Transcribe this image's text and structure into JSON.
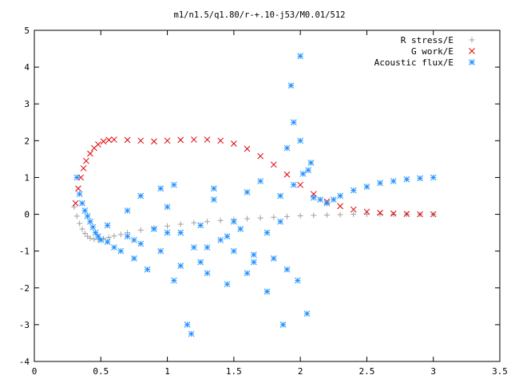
{
  "chart_data": {
    "type": "scatter",
    "title": "m1/n1.5/q1.80/r-+.10-j53/M0.01/512",
    "xlabel": "",
    "ylabel": "",
    "xlim": [
      0,
      3.5
    ],
    "ylim": [
      -4,
      5
    ],
    "x_ticks": [
      "0",
      "0.5",
      "1",
      "1.5",
      "2",
      "2.5",
      "3",
      "3.5"
    ],
    "y_ticks": [
      "-4",
      "-3",
      "-2",
      "-1",
      "0",
      "1",
      "2",
      "3",
      "4",
      "5"
    ],
    "x_tick_values": [
      0,
      0.5,
      1,
      1.5,
      2,
      2.5,
      3,
      3.5
    ],
    "y_tick_values": [
      -4,
      -3,
      -2,
      -1,
      0,
      1,
      2,
      3,
      4,
      5
    ],
    "grid": false,
    "legend_position": "top-right",
    "series": [
      {
        "name": "R stress/E",
        "marker": "plus",
        "color": "#a0a0a0",
        "x": [
          0.3,
          0.32,
          0.34,
          0.36,
          0.38,
          0.4,
          0.42,
          0.45,
          0.48,
          0.52,
          0.56,
          0.6,
          0.65,
          0.7,
          0.8,
          0.9,
          1.0,
          1.1,
          1.2,
          1.3,
          1.4,
          1.5,
          1.6,
          1.7,
          1.8,
          1.9,
          2.0,
          2.1,
          2.2,
          2.3,
          2.4,
          2.5,
          2.6,
          2.7,
          2.8,
          2.9,
          3.0
        ],
        "y": [
          0.2,
          -0.05,
          -0.25,
          -0.4,
          -0.52,
          -0.6,
          -0.65,
          -0.68,
          -0.68,
          -0.66,
          -0.63,
          -0.59,
          -0.55,
          -0.5,
          -0.43,
          -0.37,
          -0.32,
          -0.27,
          -0.23,
          -0.2,
          -0.17,
          -0.14,
          -0.12,
          -0.1,
          -0.08,
          -0.06,
          -0.04,
          -0.03,
          -0.02,
          -0.01,
          0.0,
          0.0,
          0.0,
          0.0,
          0.0,
          0.0,
          0.0
        ]
      },
      {
        "name": "G work/E",
        "marker": "cross",
        "color": "#e00000",
        "x": [
          0.31,
          0.33,
          0.35,
          0.37,
          0.39,
          0.42,
          0.45,
          0.48,
          0.52,
          0.56,
          0.6,
          0.7,
          0.8,
          0.9,
          1.0,
          1.1,
          1.2,
          1.3,
          1.4,
          1.5,
          1.6,
          1.7,
          1.8,
          1.9,
          2.0,
          2.1,
          2.2,
          2.3,
          2.4,
          2.5,
          2.6,
          2.7,
          2.8,
          2.9,
          3.0
        ],
        "y": [
          0.3,
          0.7,
          1.0,
          1.25,
          1.45,
          1.65,
          1.8,
          1.9,
          1.98,
          2.02,
          2.03,
          2.02,
          2.0,
          1.98,
          2.0,
          2.02,
          2.03,
          2.03,
          2.0,
          1.92,
          1.78,
          1.58,
          1.35,
          1.08,
          0.8,
          0.55,
          0.35,
          0.22,
          0.13,
          0.07,
          0.04,
          0.02,
          0.01,
          0.0,
          0.0
        ]
      },
      {
        "name": "Acoustic flux/E",
        "marker": "star",
        "color": "#1e90ff",
        "x": [
          0.32,
          0.34,
          0.36,
          0.38,
          0.4,
          0.42,
          0.44,
          0.46,
          0.48,
          0.5,
          0.55,
          0.6,
          0.65,
          0.7,
          0.75,
          0.8,
          0.85,
          0.9,
          0.95,
          1.0,
          1.05,
          1.1,
          1.15,
          1.18,
          1.2,
          1.25,
          1.3,
          1.35,
          1.4,
          1.45,
          1.5,
          1.55,
          1.6,
          1.65,
          1.7,
          1.75,
          1.8,
          1.85,
          1.87,
          1.9,
          1.93,
          1.95,
          1.98,
          2.0,
          2.05,
          2.06,
          2.1,
          2.15,
          2.2,
          2.25,
          2.3,
          2.4,
          2.5,
          2.6,
          2.7,
          2.8,
          2.9,
          3.0,
          0.7,
          0.8,
          0.95,
          1.05,
          1.25,
          1.35,
          1.5,
          1.6,
          1.75,
          1.9,
          2.0,
          2.08,
          0.55,
          0.75,
          1.0,
          1.1,
          1.3,
          1.45,
          1.65,
          1.85,
          1.95,
          2.02
        ],
        "y": [
          1.0,
          0.55,
          0.3,
          0.1,
          -0.05,
          -0.2,
          -0.35,
          -0.5,
          -0.6,
          -0.7,
          -0.75,
          -0.9,
          -1.0,
          -0.6,
          -1.2,
          -0.8,
          -1.5,
          -0.4,
          -1.0,
          0.2,
          -1.8,
          -0.5,
          -3.0,
          -3.25,
          -0.9,
          -1.3,
          -1.6,
          0.7,
          -0.7,
          -1.9,
          -1.0,
          -0.4,
          -1.6,
          -1.1,
          0.9,
          -2.1,
          -1.2,
          0.5,
          -3.0,
          -1.5,
          3.5,
          2.5,
          -1.8,
          4.3,
          -2.7,
          1.2,
          0.45,
          0.4,
          0.3,
          0.4,
          0.5,
          0.65,
          0.75,
          0.85,
          0.9,
          0.95,
          0.98,
          1.0,
          0.1,
          0.5,
          0.7,
          0.8,
          -0.3,
          0.4,
          -0.2,
          0.6,
          -0.5,
          1.8,
          2.0,
          1.4,
          -0.3,
          -0.7,
          -0.5,
          -1.4,
          -0.9,
          -0.6,
          -1.3,
          -0.2,
          0.8,
          1.1
        ]
      }
    ]
  }
}
